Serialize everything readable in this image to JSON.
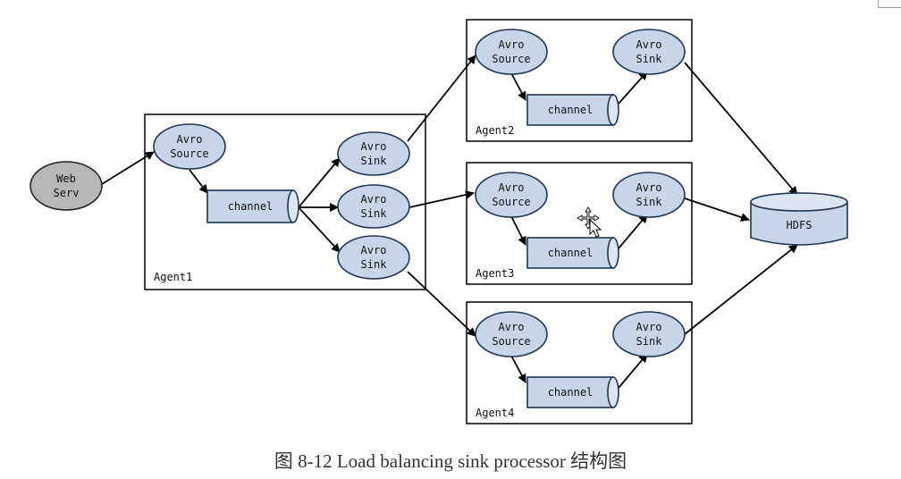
{
  "caption": "图 8-12 Load balancing sink processor 结构图",
  "nodes": {
    "web": [
      "Web",
      "Serv"
    ],
    "a1_source": [
      "Avro",
      "Source"
    ],
    "a1_channel": "channel",
    "a1_sink1": [
      "Avro",
      "Sink"
    ],
    "a1_sink2": [
      "Avro",
      "Sink"
    ],
    "a1_sink3": [
      "Avro",
      "Sink"
    ],
    "a2_source": [
      "Avro",
      "Source"
    ],
    "a2_sink": [
      "Avro",
      "Sink"
    ],
    "a2_channel": "channel",
    "a3_source": [
      "Avro",
      "Source"
    ],
    "a3_sink": [
      "Avro",
      "Sink"
    ],
    "a3_channel": "channel",
    "a4_source": [
      "Avro",
      "Source"
    ],
    "a4_sink": [
      "Avro",
      "Sink"
    ],
    "a4_channel": "channel",
    "hdfs": "HDFS"
  },
  "agents": {
    "agent1": "Agent1",
    "agent2": "Agent2",
    "agent3": "Agent3",
    "agent4": "Agent4"
  }
}
